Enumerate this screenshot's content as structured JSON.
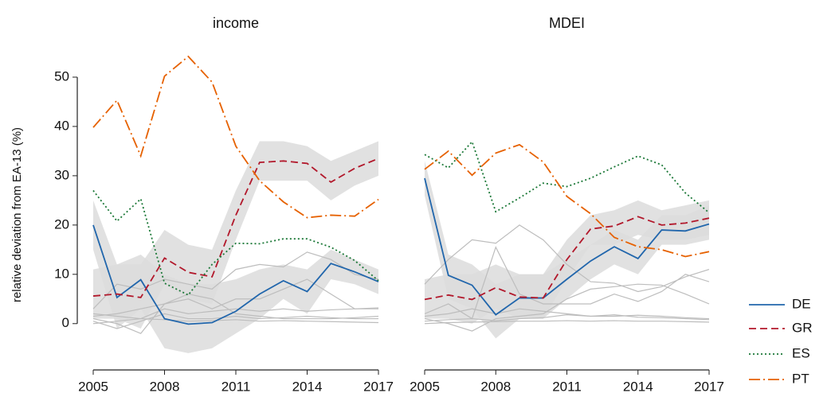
{
  "chart_data": [
    {
      "type": "line",
      "title": "income",
      "ylabel": "relative deviation from EA-13 (%)",
      "x": [
        2005,
        2006,
        2007,
        2008,
        2009,
        2010,
        2011,
        2012,
        2013,
        2014,
        2015,
        2016,
        2017
      ],
      "xlim": [
        2005,
        2017
      ],
      "xticks": [
        2005,
        2008,
        2011,
        2014,
        2017
      ],
      "ylim": [
        -9.4,
        55
      ],
      "yticks": [
        0,
        10,
        20,
        30,
        40,
        50
      ],
      "legend": "right",
      "series": [
        {
          "name": "DE",
          "color": "#2166ac",
          "linestyle": "solid",
          "values": [
            20,
            5.3,
            8.9,
            1,
            -0.1,
            0.2,
            2.5,
            6,
            8.7,
            6.5,
            12.2,
            10.5,
            8.5
          ]
        },
        {
          "name": "GR",
          "color": "#b2182b",
          "linestyle": "dashed",
          "values": [
            5.6,
            6,
            5.3,
            13.3,
            10.4,
            9.5,
            22,
            32.7,
            33,
            32.5,
            28.7,
            31.5,
            33.5
          ]
        },
        {
          "name": "ES",
          "color": "#1b7837",
          "linestyle": "dotted",
          "values": [
            27,
            20.8,
            25.3,
            8.2,
            5.8,
            12,
            16.3,
            16.2,
            17.2,
            17.2,
            15.5,
            12.8,
            8.7
          ]
        },
        {
          "name": "PT",
          "color": "#e66101",
          "linestyle": "dashdot",
          "values": [
            39.8,
            45.3,
            34,
            50.2,
            54.2,
            49,
            36,
            29,
            24.7,
            21.5,
            22,
            21.8,
            25.2
          ]
        }
      ],
      "bands": [
        {
          "color": "#dcdcdc",
          "lower": [
            15,
            -1,
            3,
            -5,
            -6,
            -5,
            -2,
            1,
            5,
            2,
            9,
            8,
            6
          ],
          "upper": [
            25,
            12,
            14,
            10,
            8,
            8,
            9,
            11,
            12,
            11,
            15,
            13,
            11
          ]
        },
        {
          "color": "#dcdcdc",
          "lower": [
            1,
            1,
            -1,
            8,
            5,
            4,
            17,
            29,
            29,
            29,
            25,
            28,
            30
          ],
          "upper": [
            11,
            12,
            12,
            19,
            16,
            15,
            27,
            37,
            37,
            36,
            33,
            35,
            37
          ]
        }
      ],
      "other_lines": [
        {
          "color": "#bdbdbd",
          "values": [
            3,
            8,
            7,
            9,
            8,
            7,
            11,
            12,
            11.5,
            14.5,
            13,
            10,
            9
          ]
        },
        {
          "color": "#bdbdbd",
          "values": [
            1,
            0,
            -2,
            4,
            5,
            3,
            5,
            5,
            7,
            9,
            6,
            3,
            3
          ]
        },
        {
          "color": "#bdbdbd",
          "values": [
            0.5,
            -1,
            0.5,
            2,
            1,
            1,
            1.5,
            1,
            1.2,
            1.5,
            1.2,
            1,
            1
          ]
        },
        {
          "color": "#bdbdbd",
          "values": [
            2,
            1.5,
            1,
            0.8,
            0.5,
            0.6,
            0.8,
            0.5,
            0.6,
            0.5,
            0.4,
            0.3,
            0.2
          ]
        },
        {
          "color": "#bdbdbd",
          "values": [
            0,
            0.5,
            1,
            3,
            2,
            2.5,
            3,
            2.5,
            3,
            2.5,
            2.8,
            3,
            3.2
          ]
        },
        {
          "color": "#bdbdbd",
          "values": [
            1.5,
            2,
            3,
            4,
            6,
            5,
            2,
            1.5,
            1,
            1,
            1,
            1.2,
            1.5
          ]
        }
      ]
    },
    {
      "type": "line",
      "title": "MDEI",
      "x": [
        2005,
        2006,
        2007,
        2008,
        2009,
        2010,
        2011,
        2012,
        2013,
        2014,
        2015,
        2016,
        2017
      ],
      "xlim": [
        2005,
        2017
      ],
      "xticks": [
        2005,
        2008,
        2011,
        2014,
        2017
      ],
      "ylim": [
        -9.4,
        55
      ],
      "series": [
        {
          "name": "DE",
          "color": "#2166ac",
          "linestyle": "solid",
          "values": [
            29.5,
            9.8,
            7.8,
            1.8,
            5.2,
            5.2,
            9,
            12.7,
            15.6,
            13.2,
            19,
            18.8,
            20.2
          ]
        },
        {
          "name": "GR",
          "color": "#b2182b",
          "linestyle": "dashed",
          "values": [
            4.9,
            5.8,
            4.9,
            7.3,
            5.4,
            5.2,
            13,
            19.2,
            19.8,
            21.7,
            20,
            20.4,
            21.4
          ]
        },
        {
          "name": "ES",
          "color": "#1b7837",
          "linestyle": "dotted",
          "values": [
            34.3,
            31.6,
            36.9,
            22.7,
            25.5,
            28.5,
            27.8,
            29.5,
            31.8,
            34,
            32.2,
            26.5,
            22.5
          ]
        },
        {
          "name": "PT",
          "color": "#e66101",
          "linestyle": "dashdot",
          "values": [
            31.3,
            35,
            30.1,
            34.6,
            36.3,
            32.8,
            25.8,
            22.3,
            17.5,
            15.6,
            15,
            13.6,
            14.6
          ]
        }
      ],
      "bands": [
        {
          "color": "#dcdcdc",
          "lower": [
            26,
            5,
            3,
            -3,
            1,
            1,
            5,
            9,
            12,
            10,
            16,
            16,
            17
          ],
          "upper": [
            33,
            14,
            12,
            8,
            10,
            10,
            13,
            16,
            19,
            17,
            22,
            22,
            24
          ]
        },
        {
          "color": "#dcdcdc",
          "lower": [
            1,
            1,
            0,
            3,
            1,
            1,
            9,
            16,
            16,
            18,
            17,
            17,
            18
          ],
          "upper": [
            9,
            10,
            10,
            12,
            10,
            10,
            17,
            22,
            23,
            25,
            23,
            24,
            25
          ]
        }
      ],
      "other_lines": [
        {
          "color": "#bdbdbd",
          "values": [
            8,
            13,
            17,
            16.3,
            20,
            17,
            12,
            8.5,
            8.2,
            6.5,
            7.5,
            9.5,
            11
          ]
        },
        {
          "color": "#bdbdbd",
          "values": [
            2,
            4,
            1,
            15.5,
            6,
            4,
            4,
            4,
            6,
            4.5,
            6.5,
            10,
            8.5
          ]
        },
        {
          "color": "#bdbdbd",
          "values": [
            1,
            0,
            -1.5,
            1,
            1.5,
            2,
            5,
            7,
            7.5,
            8,
            7.8,
            6,
            4
          ]
        },
        {
          "color": "#bdbdbd",
          "values": [
            0.5,
            0.8,
            1,
            0.6,
            1,
            1.2,
            1.8,
            1.5,
            1.5,
            1.7,
            1.5,
            1.2,
            1
          ]
        },
        {
          "color": "#bdbdbd",
          "values": [
            0,
            0.2,
            0.3,
            0.4,
            0.5,
            0.5,
            0.6,
            0.5,
            0.6,
            0.5,
            0.5,
            0.4,
            0.3
          ]
        },
        {
          "color": "#bdbdbd",
          "values": [
            1.5,
            2,
            3,
            2,
            3,
            2.5,
            2,
            1.5,
            1.8,
            1.3,
            1.2,
            1,
            0.8
          ]
        }
      ]
    }
  ]
}
